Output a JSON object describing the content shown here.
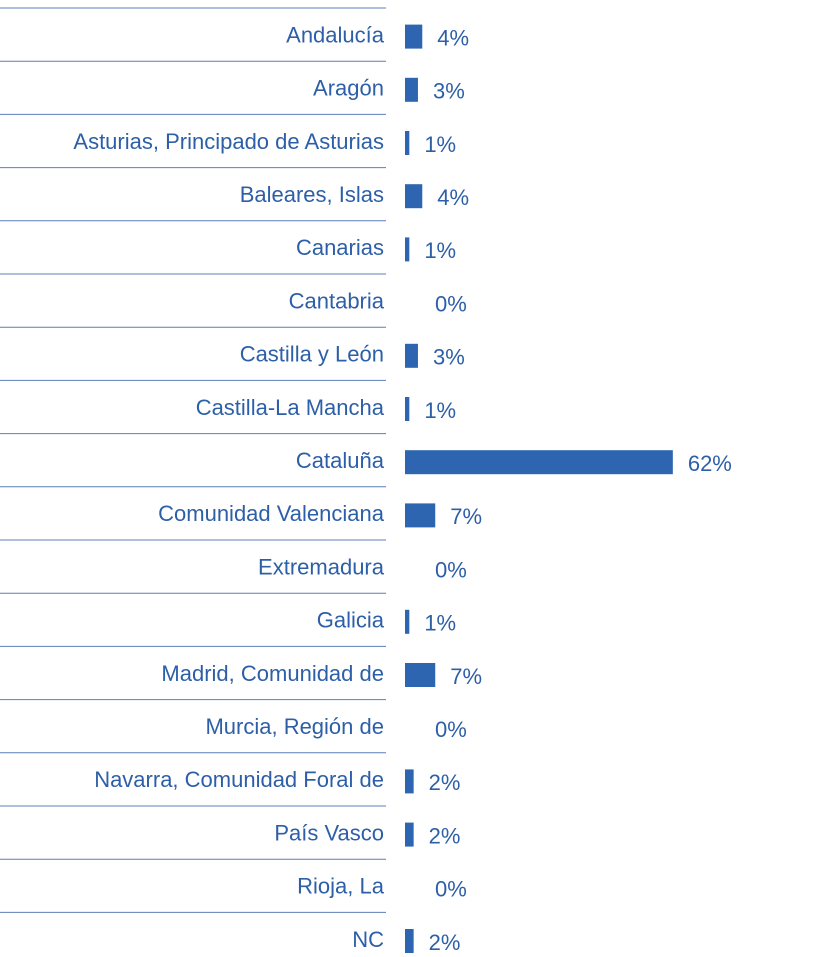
{
  "chart_data": {
    "type": "bar",
    "orientation": "horizontal",
    "color": "#2e65b0",
    "categories": [
      "Andalucía",
      "Aragón",
      "Asturias, Principado de Asturias",
      "Baleares, Islas",
      "Canarias",
      "Cantabria",
      "Castilla y León",
      "Castilla-La Mancha",
      "Cataluña",
      "Comunidad Valenciana",
      "Extremadura",
      "Galicia",
      "Madrid, Comunidad de",
      "Murcia, Región de",
      "Navarra, Comunidad Foral de",
      "País Vasco",
      "Rioja, La",
      "NC"
    ],
    "values": [
      4,
      3,
      1,
      4,
      1,
      0,
      3,
      1,
      62,
      7,
      0,
      1,
      7,
      0,
      2,
      2,
      0,
      2
    ],
    "value_labels": [
      "4%",
      "3%",
      "1%",
      "4%",
      "1%",
      "0%",
      "3%",
      "1%",
      "62%",
      "7%",
      "0%",
      "1%",
      "7%",
      "0%",
      "2%",
      "2%",
      "0%",
      "2%"
    ]
  }
}
